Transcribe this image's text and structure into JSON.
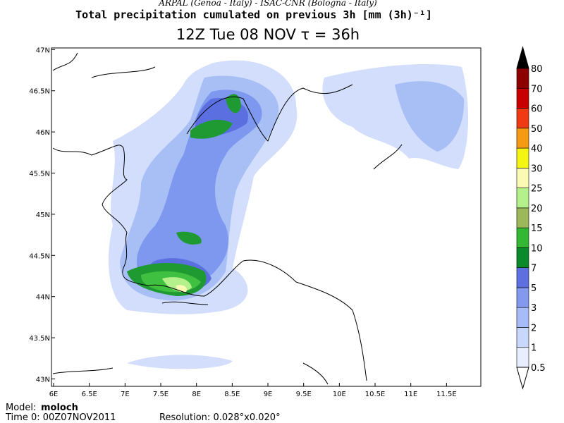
{
  "header": {
    "institutions": "ARPAL (Genoa - Italy)  -  ISAC-CNR (Bologna - Italy)",
    "title": "Total precipitation cumulated on previous 3h [mm (3h)⁻¹]",
    "subtitle": "12Z Tue 08 NOV  τ = 36h"
  },
  "map": {
    "xlim": [
      5.97,
      11.98
    ],
    "ylim": [
      42.91,
      47.02
    ],
    "lon_ticks": [
      {
        "value": 6,
        "label": "6E"
      },
      {
        "value": 6.5,
        "label": "6.5E"
      },
      {
        "value": 7,
        "label": "7E"
      },
      {
        "value": 7.5,
        "label": "7.5E"
      },
      {
        "value": 8,
        "label": "8E"
      },
      {
        "value": 8.5,
        "label": "8.5E"
      },
      {
        "value": 9,
        "label": "9E"
      },
      {
        "value": 9.5,
        "label": "9.5E"
      },
      {
        "value": 10,
        "label": "10E"
      },
      {
        "value": 10.5,
        "label": "10.5E"
      },
      {
        "value": 11,
        "label": "11E"
      },
      {
        "value": 11.5,
        "label": "11.5E"
      }
    ],
    "lat_ticks": [
      {
        "value": 43,
        "label": "43N"
      },
      {
        "value": 43.5,
        "label": "43.5N"
      },
      {
        "value": 44,
        "label": "44N"
      },
      {
        "value": 44.5,
        "label": "44.5N"
      },
      {
        "value": 45,
        "label": "45N"
      },
      {
        "value": 45.5,
        "label": "45.5N"
      },
      {
        "value": 46,
        "label": "46N"
      },
      {
        "value": 46.5,
        "label": "46.5N"
      },
      {
        "value": 47,
        "label": "47N"
      }
    ]
  },
  "colorbar": {
    "levels": [
      0.5,
      1,
      2,
      3,
      5,
      7,
      10,
      15,
      20,
      25,
      30,
      40,
      50,
      60,
      70,
      80
    ],
    "colors": [
      "#e8eeff",
      "#c8d7fc",
      "#a6bcf6",
      "#8299ee",
      "#5e6fe0",
      "#0a8a2a",
      "#34b834",
      "#9cb85a",
      "#b4f08c",
      "#fafab4",
      "#f5f514",
      "#f59a14",
      "#f03a14",
      "#c80000",
      "#8c0000"
    ],
    "under_color": "#ffffff",
    "over_color": "#000000"
  },
  "footer": {
    "model_label": "Model:",
    "model": "moloch",
    "time": "Time 0: 00Z07NOV2011",
    "resolution": "Resolution: 0.028°x0.020°"
  }
}
